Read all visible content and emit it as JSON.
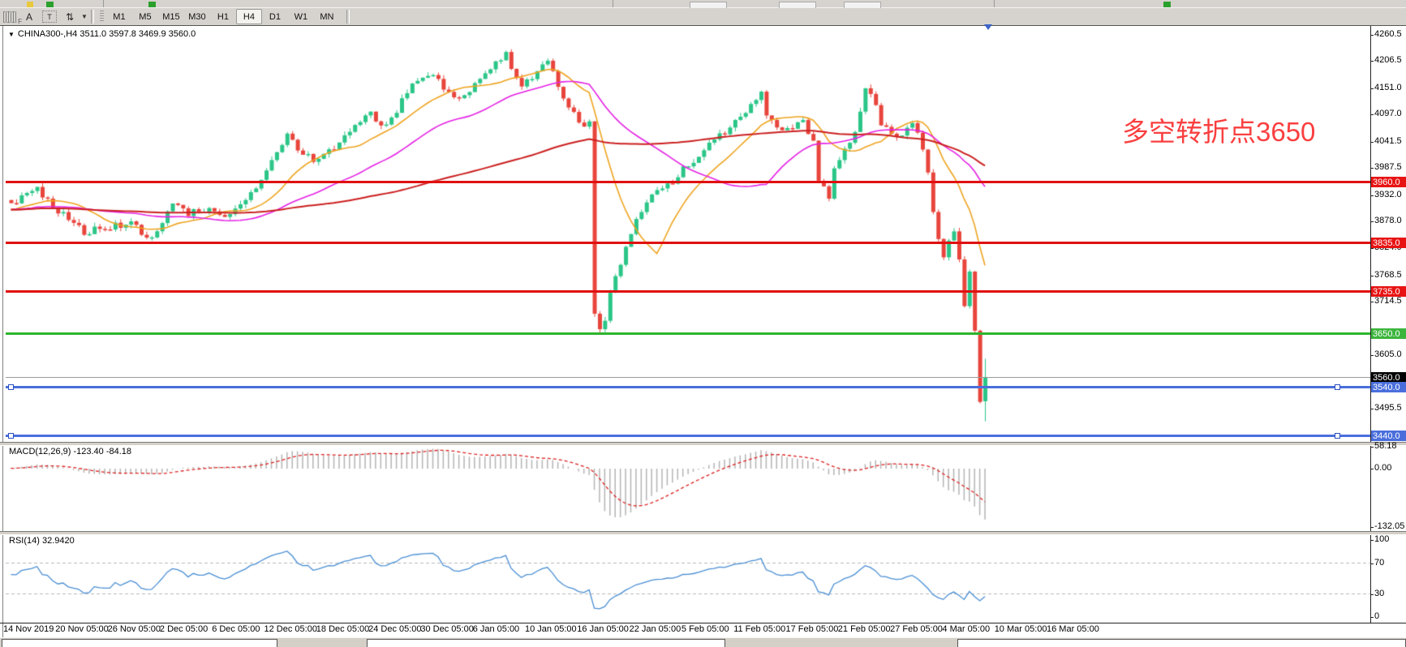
{
  "toolbar": {
    "tools": [
      {
        "id": "grid-tool",
        "label": "F"
      },
      {
        "id": "text-label-tool",
        "label": "A"
      },
      {
        "id": "text-tool",
        "label": "T"
      },
      {
        "id": "arrows-tool",
        "label": "⇅"
      }
    ],
    "timeframes": [
      "M1",
      "M5",
      "M15",
      "M30",
      "H1",
      "H4",
      "D1",
      "W1",
      "MN"
    ],
    "active_timeframe": "H4"
  },
  "chart": {
    "symbol_label": "CHINA300-,H4  3511.0 3597.8 3469.9 3560.0",
    "annotation": {
      "text": "多空转折点3650",
      "color": "#fa3f3f"
    },
    "price_axis_ticks": [
      "4260.5",
      "4206.5",
      "4151.0",
      "4097.0",
      "4041.5",
      "3987.5",
      "3932.0",
      "3878.0",
      "3824.0",
      "3768.5",
      "3714.5",
      "3605.0",
      "3495.5"
    ],
    "price_badges": [
      {
        "value": "3960.0",
        "price": 3960,
        "bg": "#e81414"
      },
      {
        "value": "3835.0",
        "price": 3835,
        "bg": "#e81414"
      },
      {
        "value": "3735.0",
        "price": 3735,
        "bg": "#e81414"
      },
      {
        "value": "3650.0",
        "price": 3650,
        "bg": "#3cb53c"
      },
      {
        "value": "3560.0",
        "price": 3560,
        "bg": "#000000"
      },
      {
        "value": "3540.0",
        "price": 3540,
        "bg": "#4a6fdc"
      },
      {
        "value": "3440.0",
        "price": 3440,
        "bg": "#4a6fdc"
      }
    ]
  },
  "macd_panel": {
    "label": "MACD(12,26,9) -123.40 -84.18",
    "axis": [
      {
        "value": 58.18,
        "label": "58.18"
      },
      {
        "value": 0,
        "label": "0.00"
      },
      {
        "value": -132.05,
        "label": "-132.05"
      }
    ]
  },
  "rsi_panel": {
    "label": "RSI(14) 32.9420",
    "axis": [
      {
        "value": 100,
        "label": "100"
      },
      {
        "value": 70,
        "label": "70"
      },
      {
        "value": 30,
        "label": "30"
      },
      {
        "value": 0,
        "label": "0"
      }
    ]
  },
  "time_axis": [
    "14 Nov 2019",
    "20 Nov 05:00",
    "26 Nov 05:00",
    "2 Dec 05:00",
    "6 Dec 05:00",
    "12 Dec 05:00",
    "18 Dec 05:00",
    "24 Dec 05:00",
    "30 Dec 05:00",
    "6 Jan 05:00",
    "10 Jan 05:00",
    "16 Jan 05:00",
    "22 Jan 05:00",
    "5 Feb 05:00",
    "11 Feb 05:00",
    "17 Feb 05:00",
    "21 Feb 05:00",
    "27 Feb 05:00",
    "4 Mar 05:00",
    "10 Mar 05:00",
    "16 Mar 05:00"
  ],
  "chart_data": {
    "type": "candlestick",
    "symbol": "CHINA300",
    "timeframe": "H4",
    "title": "CHINA300-,H4",
    "last_bar": {
      "open": 3511.0,
      "high": 3597.8,
      "low": 3469.9,
      "close": 3560.0
    },
    "bars_visible": 188,
    "view_price_range": [
      3420,
      4285
    ],
    "up_color": "#2bc688",
    "down_color": "#e8453c",
    "close_anchors": [
      [
        0,
        3915
      ],
      [
        5,
        3945
      ],
      [
        9,
        3900
      ],
      [
        14,
        3857
      ],
      [
        19,
        3868
      ],
      [
        23,
        3875
      ],
      [
        26,
        3845
      ],
      [
        28,
        3860
      ],
      [
        31,
        3920
      ],
      [
        34,
        3895
      ],
      [
        37,
        3905
      ],
      [
        41,
        3890
      ],
      [
        44,
        3915
      ],
      [
        47,
        3950
      ],
      [
        50,
        4000
      ],
      [
        53,
        4055
      ],
      [
        55,
        4030
      ],
      [
        58,
        4000
      ],
      [
        61,
        4020
      ],
      [
        63,
        4040
      ],
      [
        66,
        4070
      ],
      [
        69,
        4098
      ],
      [
        71,
        4075
      ],
      [
        73,
        4090
      ],
      [
        77,
        4160
      ],
      [
        79,
        4170
      ],
      [
        81,
        4183
      ],
      [
        83,
        4155
      ],
      [
        85,
        4128
      ],
      [
        88,
        4150
      ],
      [
        91,
        4180
      ],
      [
        93,
        4200
      ],
      [
        95,
        4218
      ],
      [
        96,
        4195
      ],
      [
        98,
        4160
      ],
      [
        100,
        4175
      ],
      [
        101,
        4190
      ],
      [
        103,
        4205
      ],
      [
        105,
        4160
      ],
      [
        107,
        4110
      ],
      [
        109,
        4085
      ],
      [
        110,
        4075
      ],
      [
        111,
        4090
      ],
      [
        112,
        3690
      ],
      [
        113,
        3655
      ],
      [
        114,
        3680
      ],
      [
        115,
        3730
      ],
      [
        117,
        3790
      ],
      [
        119,
        3855
      ],
      [
        122,
        3920
      ],
      [
        124,
        3945
      ],
      [
        127,
        3958
      ],
      [
        129,
        3985
      ],
      [
        132,
        4010
      ],
      [
        134,
        4040
      ],
      [
        137,
        4060
      ],
      [
        139,
        4085
      ],
      [
        141,
        4100
      ],
      [
        142,
        4120
      ],
      [
        144,
        4140
      ],
      [
        145,
        4095
      ],
      [
        148,
        4060
      ],
      [
        150,
        4075
      ],
      [
        152,
        4080
      ],
      [
        154,
        4040
      ],
      [
        155,
        3960
      ],
      [
        157,
        3932
      ],
      [
        158,
        3990
      ],
      [
        160,
        4030
      ],
      [
        162,
        4060
      ],
      [
        163,
        4110
      ],
      [
        164,
        4150
      ],
      [
        166,
        4120
      ],
      [
        167,
        4080
      ],
      [
        169,
        4060
      ],
      [
        170,
        4048
      ],
      [
        172,
        4065
      ],
      [
        173,
        4080
      ],
      [
        174,
        4060
      ],
      [
        175,
        4020
      ],
      [
        176,
        3985
      ],
      [
        177,
        3900
      ],
      [
        178,
        3845
      ],
      [
        179,
        3810
      ],
      [
        180,
        3840
      ],
      [
        181,
        3862
      ],
      [
        182,
        3800
      ],
      [
        183,
        3710
      ],
      [
        184,
        3770
      ],
      [
        185,
        3650
      ],
      [
        186,
        3510
      ],
      [
        187,
        3560
      ]
    ],
    "horizontal_levels": [
      {
        "price": 3960,
        "color": "#e01010",
        "thickness": 3,
        "selected": false
      },
      {
        "price": 3835,
        "color": "#e01010",
        "thickness": 3,
        "selected": false
      },
      {
        "price": 3735,
        "color": "#e01010",
        "thickness": 3,
        "selected": false
      },
      {
        "price": 3650,
        "color": "#2eb52e",
        "thickness": 3,
        "selected": false
      },
      {
        "price": 3560,
        "color": "#9a9a9a",
        "thickness": 1,
        "selected": false
      },
      {
        "price": 3540,
        "color": "#4a6fdc",
        "thickness": 3,
        "selected": true
      },
      {
        "price": 3440,
        "color": "#4a6fdc",
        "thickness": 3,
        "selected": true
      }
    ],
    "moving_averages": [
      {
        "period": 13,
        "color": "#efa420"
      },
      {
        "period": 34,
        "color": "#e522e5"
      },
      {
        "period": 90,
        "color": "#cc2020"
      }
    ],
    "indicators": [
      {
        "name": "MACD",
        "params": [
          12,
          26,
          9
        ],
        "current_values": [
          -123.4,
          -84.18
        ],
        "shown_range": [
          58.18,
          -132.05
        ],
        "histogram_color": "#b4b4b4",
        "signal_color": "#dd2222",
        "signal_style": "dashed"
      },
      {
        "name": "RSI",
        "params": [
          14
        ],
        "current_value": 32.942,
        "levels": [
          70,
          30
        ],
        "shown_range": [
          0,
          100
        ],
        "line_color": "#4a8fd4"
      }
    ]
  }
}
